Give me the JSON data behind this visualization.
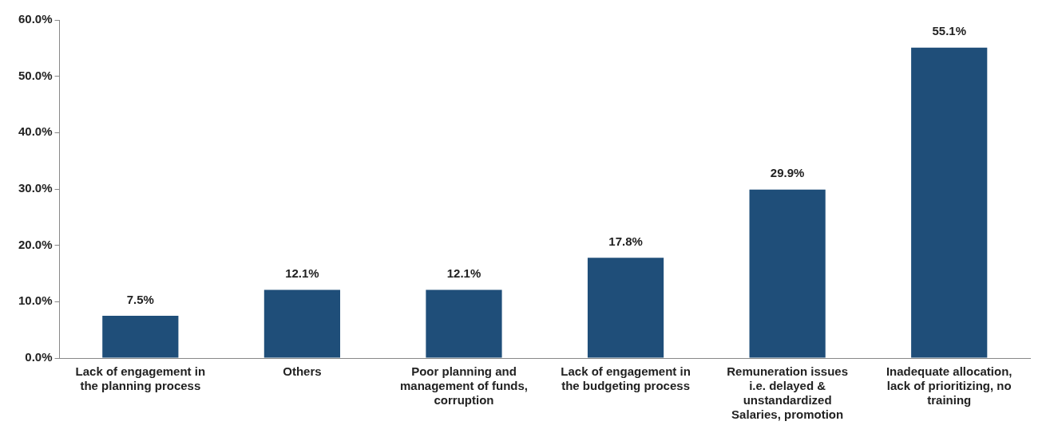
{
  "chart_data": {
    "type": "bar",
    "categories": [
      "Lack of engagement in the planning process",
      "Others",
      "Poor planning and management of funds, corruption",
      "Lack of engagement in the budgeting process",
      "Remuneration issues i.e. delayed & unstandardized Salaries, promotion",
      "Inadequate allocation, lack of prioritizing, no training"
    ],
    "values": [
      7.5,
      12.1,
      12.1,
      17.8,
      29.9,
      55.1
    ],
    "value_labels": [
      "7.5%",
      "12.1%",
      "12.1%",
      "17.8%",
      "29.9%",
      "55.1%"
    ],
    "color": "#1f4e79",
    "ylim": [
      0,
      60
    ],
    "yticks": [
      {
        "value": 0,
        "label": "0.0%"
      },
      {
        "value": 10,
        "label": "10.0%"
      },
      {
        "value": 20,
        "label": "20.0%"
      },
      {
        "value": 30,
        "label": "30.0%"
      },
      {
        "value": 40,
        "label": "40.0%"
      },
      {
        "value": 50,
        "label": "50.0%"
      },
      {
        "value": 60,
        "label": "60.0%"
      }
    ],
    "grid": false,
    "legend": false
  }
}
